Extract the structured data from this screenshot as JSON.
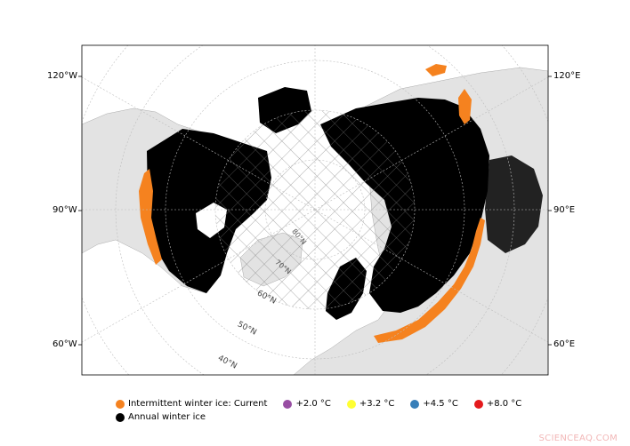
{
  "map": {
    "lon_labels": {
      "left": [
        "120°W",
        "90°W",
        "60°W"
      ],
      "right": [
        "120°E",
        "90°E",
        "60°E"
      ]
    },
    "lat_labels": [
      "60°N",
      "50°N",
      "40°N"
    ],
    "inner_lat_labels": [
      "80°N",
      "70°N"
    ]
  },
  "legend": {
    "row1": [
      {
        "label": "Intermittent winter ice: Current",
        "color": "#f5821f"
      },
      {
        "label": "+2.0 °C",
        "color": "#984ea3"
      },
      {
        "label": "+3.2 °C",
        "color": "#ffff33"
      },
      {
        "label": "+4.5 °C",
        "color": "#377eb8"
      },
      {
        "label": "+8.0 °C",
        "color": "#e41a1c"
      }
    ],
    "row2": [
      {
        "label": "Annual winter ice",
        "color": "#000000"
      }
    ]
  },
  "colors": {
    "land": "#e3e3e3",
    "annual_ice": "#000000",
    "intermittent_ice": "#f5821f",
    "grid": "#bdbdbd"
  },
  "watermark": "SCIENCEAQ.COM"
}
